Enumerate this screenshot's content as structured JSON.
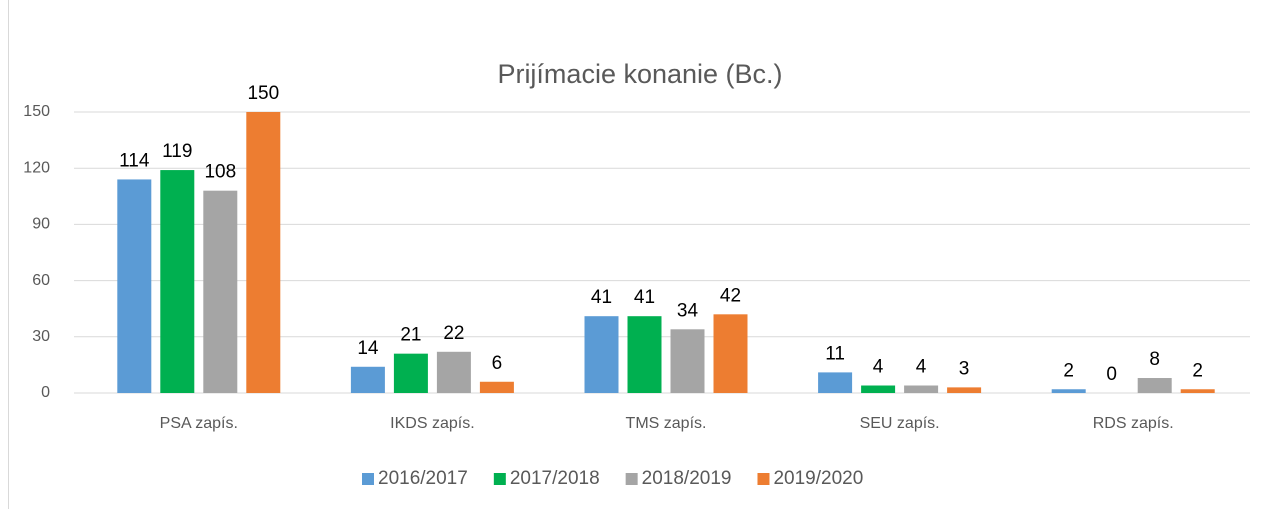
{
  "chart_data": {
    "type": "bar",
    "title": "Prijímacie konanie (Bc.)",
    "categories": [
      "PSA zapís.",
      "IKDS zapís.",
      "TMS zapís.",
      "SEU zapís.",
      "RDS zapís."
    ],
    "series": [
      {
        "name": "2016/2017",
        "color": "#5b9bd5",
        "values": [
          114,
          14,
          41,
          11,
          2
        ]
      },
      {
        "name": "2017/2018",
        "color": "#00b050",
        "values": [
          119,
          21,
          41,
          4,
          0
        ]
      },
      {
        "name": "2018/2019",
        "color": "#a5a5a5",
        "values": [
          108,
          22,
          34,
          4,
          8
        ]
      },
      {
        "name": "2019/2020",
        "color": "#ed7d31",
        "values": [
          150,
          6,
          42,
          3,
          2
        ]
      }
    ],
    "ylim": [
      0,
      150
    ],
    "yticks": [
      0,
      30,
      60,
      90,
      120,
      150
    ],
    "grid": true,
    "legend": "bottom"
  }
}
